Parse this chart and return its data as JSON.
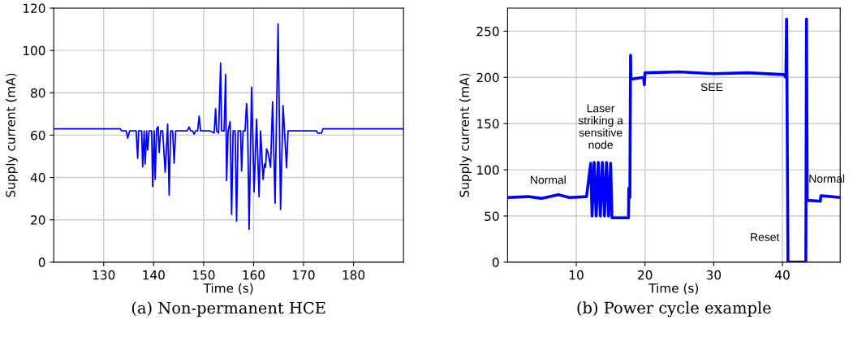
{
  "chart_data": [
    {
      "type": "line",
      "xlabel": "Time (s)",
      "ylabel": "Supply current (mA)",
      "xlim": [
        120,
        190
      ],
      "ylim": [
        0,
        120
      ],
      "xticks": [
        130,
        140,
        150,
        160,
        170,
        180
      ],
      "yticks": [
        0,
        20,
        40,
        60,
        80,
        100,
        120
      ],
      "grid": true,
      "series": [
        {
          "color": "#0000ff",
          "x": [
            120,
            133.3,
            133.6,
            134.5,
            134.8,
            135.2,
            136.5,
            136.8,
            137.0,
            137.6,
            137.8,
            138.1,
            138.3,
            138.6,
            138.8,
            139.1,
            139.6,
            139.8,
            140.1,
            140.3,
            140.6,
            140.9,
            141.1,
            141.4,
            141.8,
            142.3,
            142.8,
            143.1,
            143.4,
            143.8,
            144.1,
            144.4,
            146.7,
            147.1,
            147.4,
            147.8,
            148.1,
            148.4,
            148.8,
            149.1,
            149.4,
            151.3,
            152.1,
            152.4,
            152.6,
            153.0,
            153.4,
            153.6,
            154.1,
            154.4,
            154.6,
            154.9,
            155.3,
            155.6,
            155.9,
            156.3,
            156.6,
            156.9,
            157.4,
            157.6,
            157.9,
            158.3,
            158.6,
            158.8,
            159.1,
            159.6,
            160.1,
            160.6,
            161.1,
            161.4,
            161.9,
            162.2,
            162.4,
            162.6,
            162.9,
            163.4,
            163.8,
            164.3,
            164.9,
            165.4,
            165.9,
            166.6,
            166.9,
            172.6,
            172.8,
            173.6,
            173.9,
            190
          ],
          "values": [
            63,
            63,
            62,
            62,
            58.6,
            62,
            62,
            49.1,
            62,
            62,
            45,
            62,
            46.4,
            62,
            53,
            62,
            62,
            35.8,
            62,
            39.1,
            62.9,
            64,
            51.7,
            62,
            62,
            42.5,
            65.2,
            31.7,
            62,
            62,
            46.8,
            62,
            62,
            63.8,
            62,
            62,
            60.5,
            62,
            62,
            68.9,
            62,
            62,
            61,
            72.5,
            62,
            61,
            94,
            62,
            62,
            88.7,
            38.6,
            62,
            66.4,
            22.6,
            62,
            62,
            19.4,
            62,
            62,
            43.1,
            62,
            62,
            74.9,
            66.5,
            15.6,
            82.6,
            33.2,
            67.5,
            30.9,
            62,
            39.1,
            46.4,
            44.8,
            53.5,
            51.8,
            44.8,
            75.7,
            27.9,
            112.5,
            24.9,
            73.9,
            44.6,
            62,
            62,
            61,
            61,
            63,
            63
          ]
        }
      ],
      "annotations": [
        "(a) Non-permanent HCE"
      ]
    },
    {
      "type": "line",
      "xlabel": "Time (s)",
      "ylabel": "Supply current (mA)",
      "xlim": [
        0,
        48.4
      ],
      "ylim": [
        0,
        275
      ],
      "xticks": [
        10,
        20,
        30,
        40
      ],
      "yticks": [
        0,
        50,
        100,
        150,
        200,
        250
      ],
      "grid": true,
      "series": [
        {
          "color": "#0000ff",
          "x": [
            0,
            3,
            5,
            7.4,
            9,
            11.5,
            12.1,
            12.3,
            12.6,
            12.9,
            13.2,
            13.5,
            13.8,
            14.1,
            14.4,
            14.7,
            15.0,
            15.2,
            17.6,
            17.65,
            17.8,
            17.9,
            17.95,
            19.8,
            19.9,
            20.0,
            25,
            30,
            35,
            40.2,
            40.5,
            40.6,
            40.8,
            43.4,
            43.5,
            43.6,
            45.5,
            45.6,
            48.4
          ],
          "values": [
            70,
            71,
            69,
            73,
            70,
            71,
            107,
            50,
            108,
            50,
            108,
            50,
            108,
            50,
            108,
            50,
            107,
            48,
            48,
            80,
            70,
            224,
            198,
            200,
            192,
            205,
            206,
            204,
            205,
            203,
            200,
            263,
            0,
            0,
            263,
            67,
            66,
            72,
            70
          ]
        }
      ],
      "annotations": [
        "Normal",
        "Laser\nstriking a\nsensitive\nnode",
        "SEE",
        "Reset",
        "Normal",
        "(b) Power cycle example"
      ]
    }
  ]
}
